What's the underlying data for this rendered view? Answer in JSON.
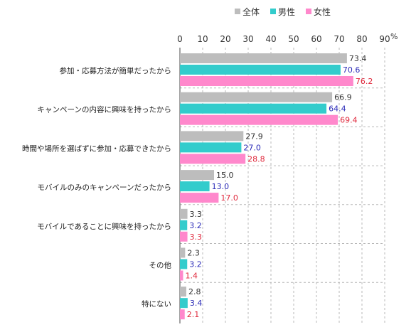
{
  "chart_data": {
    "type": "bar",
    "orientation": "horizontal",
    "unit_label": "%",
    "xlim": [
      0,
      90
    ],
    "ticks": [
      "0",
      "10",
      "20",
      "30",
      "40",
      "50",
      "60",
      "70",
      "80",
      "90"
    ],
    "legend_position": "top-right",
    "categories": [
      "参加・応募方法が簡単だったから",
      "キャンペーンの内容に興味を持ったから",
      "時間や場所を選ばずに参加・応募できたから",
      "モバイルのみのキャンペーンだったから",
      "モバイルであることに興味を持ったから",
      "その他",
      "特にない"
    ],
    "series": [
      {
        "name": "全体",
        "color": "#bdbdbd",
        "label_color": "#333333",
        "values": [
          73.4,
          66.9,
          27.9,
          15.0,
          3.3,
          2.3,
          2.8
        ]
      },
      {
        "name": "男性",
        "color": "#33cccc",
        "label_color": "#2b2bb8",
        "values": [
          70.6,
          64.4,
          27.0,
          13.0,
          3.2,
          3.2,
          3.4
        ]
      },
      {
        "name": "女性",
        "color": "#ff88cc",
        "label_color": "#e0283c",
        "values": [
          76.2,
          69.4,
          28.8,
          17.0,
          3.3,
          1.4,
          2.1
        ]
      }
    ],
    "value_labels": [
      [
        "73.4",
        "66.9",
        "27.9",
        "15.0",
        "3.3",
        "2.3",
        "2.8"
      ],
      [
        "70.6",
        "64.4",
        "27.0",
        "13.0",
        "3.2",
        "3.2",
        "3.4"
      ],
      [
        "76.2",
        "69.4",
        "28.8",
        "17.0",
        "3.3",
        "1.4",
        "2.1"
      ]
    ],
    "grid": true
  }
}
